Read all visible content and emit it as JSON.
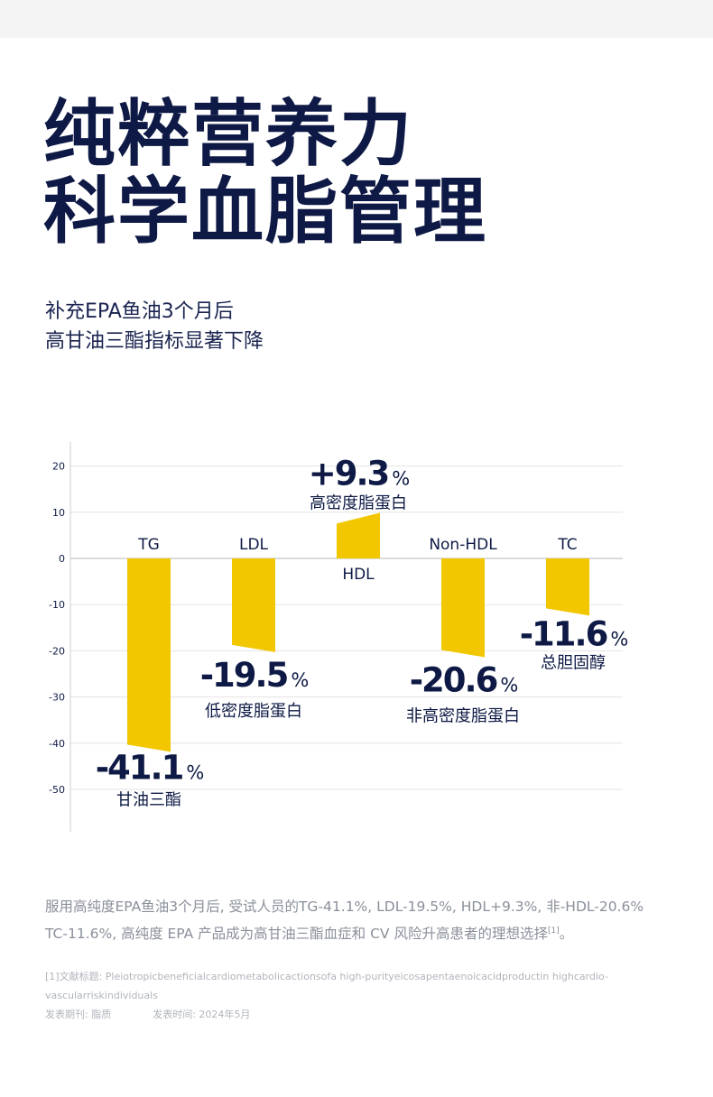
{
  "hero": {
    "title_line1": "纯粹营养力",
    "title_line2": "科学血脂管理"
  },
  "subtitle": {
    "line1": "补充EPA鱼油3个月后",
    "line2": "高甘油三酯指标显著下降"
  },
  "colors": {
    "bar": "#f2c700",
    "navy": "#0e1a45",
    "grid": "#e3e3e3",
    "axis": "#cfcfcf"
  },
  "chart_data": {
    "type": "bar",
    "categories": [
      "TG",
      "LDL",
      "HDL",
      "Non-HDL",
      "TC"
    ],
    "values": [
      -41.1,
      -19.5,
      9.3,
      -20.6,
      -11.6
    ],
    "value_labels": [
      "-41.1",
      "-19.5",
      "+9.3",
      "-20.6",
      "-11.6"
    ],
    "percent_sign": "%",
    "descriptions": [
      "甘油三酯",
      "低密度脂蛋白",
      "高密度脂蛋白",
      "非高密度脂蛋白",
      "总胆固醇"
    ],
    "y_ticks": [
      "20",
      "10",
      "0",
      "-10",
      "-20",
      "-30",
      "-40",
      "-50"
    ],
    "y_tick_values": [
      20,
      10,
      0,
      -10,
      -20,
      -30,
      -40,
      -50
    ],
    "ylim": [
      -60,
      25
    ],
    "grid": true
  },
  "footnote": {
    "line1": "服用高纯度EPA鱼油3个月后, 受试人员的TG-41.1%, LDL-19.5%, HDL+9.3%, 非-HDL-20.6%",
    "line2_text": "TC-11.6%, 高纯度 EPA 产品成为高甘油三酯血症和 CV 风险升高患者的理想选择",
    "line2_ref": "[1]",
    "line2_end": "。"
  },
  "references": {
    "line1": "[1]文献标题: Pleiotropicbeneficialcardiometabolicactionsofa high-purityeicosapentaenoicacidproductin highcardio-",
    "line2": "vascularriskindividuals",
    "journal": "发表期刊: 脂质",
    "date": "发表时间: 2024年5月"
  }
}
